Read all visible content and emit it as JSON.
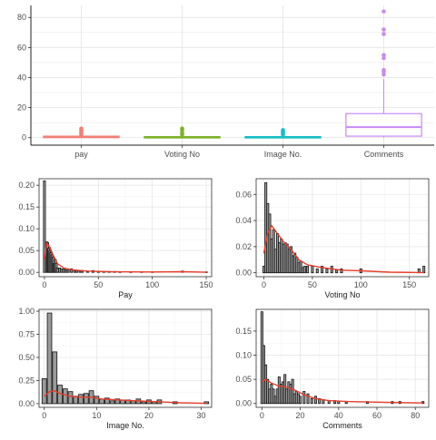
{
  "colors": {
    "pay": "#f07f75",
    "voting": "#80b02a",
    "image": "#17bfc4",
    "comments": "#c98af4",
    "bar_fill": "#9a9a9a",
    "bar_stroke": "#111111",
    "density": "#e63d2b",
    "grid": "#e6e6e6",
    "panel_border": "#333333",
    "tick_text": "#4d4d4d"
  },
  "chart_data": [
    {
      "id": "box",
      "type": "box",
      "categories": [
        "pay",
        "Voting No",
        "Image No.",
        "Comments"
      ],
      "ylim": [
        -5,
        88
      ],
      "yticks": [
        0,
        20,
        40,
        60,
        80
      ],
      "ytick_labels": [
        "0",
        "20",
        "40",
        "60",
        "80"
      ],
      "grid": true,
      "boxes": [
        {
          "q1": 0,
          "median": 0.5,
          "q3": 1,
          "wlow": 0,
          "whigh": 1.5,
          "outliers": [
            2,
            3,
            4,
            5,
            6
          ]
        },
        {
          "q1": 0,
          "median": 0.3,
          "q3": 0.7,
          "wlow": 0,
          "whigh": 1.2,
          "outliers": [
            2,
            3,
            5,
            6
          ]
        },
        {
          "q1": 0,
          "median": 0.3,
          "q3": 0.7,
          "wlow": 0,
          "whigh": 1.2,
          "outliers": [
            2,
            3,
            4,
            5
          ]
        },
        {
          "q1": 1,
          "median": 7,
          "q3": 16,
          "wlow": 0,
          "whigh": 39,
          "outliers": [
            42,
            44,
            45,
            53,
            55,
            69,
            72,
            84
          ]
        }
      ]
    },
    {
      "id": "pay",
      "type": "bar",
      "xlabel": "Pay",
      "xlim": [
        -5,
        155
      ],
      "ylim": [
        -0.01,
        0.215
      ],
      "xticks": [
        0,
        50,
        100,
        150
      ],
      "xtick_labels": [
        "0",
        "50",
        "100",
        "150"
      ],
      "yticks": [
        0,
        0.05,
        0.1,
        0.15,
        0.2
      ],
      "ytick_labels": [
        "0.00",
        "0.05",
        "0.10",
        "0.15",
        "0.20"
      ],
      "x": [
        0,
        2,
        3,
        4,
        5,
        6,
        7,
        8,
        9,
        10,
        11,
        12,
        14,
        16,
        18,
        20,
        22,
        25,
        28,
        30,
        33,
        35,
        40,
        45,
        50,
        55,
        60,
        65,
        70,
        80,
        90,
        100,
        128,
        150
      ],
      "values": [
        0.21,
        0.07,
        0.068,
        0.055,
        0.05,
        0.045,
        0.04,
        0.035,
        0.02,
        0.03,
        0.02,
        0.01,
        0.01,
        0.008,
        0.008,
        0.006,
        0.005,
        0.008,
        0.004,
        0.004,
        0.003,
        0.004,
        0.002,
        0.004,
        0.002,
        0.002,
        0.002,
        0.002,
        0.001,
        0.001,
        0.001,
        0.001,
        0.003,
        0.001
      ],
      "density": [
        [
          0,
          0.03
        ],
        [
          2,
          0.068
        ],
        [
          5,
          0.058
        ],
        [
          8,
          0.04
        ],
        [
          12,
          0.02
        ],
        [
          18,
          0.01
        ],
        [
          25,
          0.006
        ],
        [
          40,
          0.003
        ],
        [
          60,
          0.0015
        ],
        [
          100,
          0.0008
        ],
        [
          128,
          0.0015
        ],
        [
          150,
          0.0003
        ]
      ]
    },
    {
      "id": "voting",
      "type": "bar",
      "xlabel": "Voting No",
      "xlim": [
        -8,
        170
      ],
      "ylim": [
        -0.003,
        0.072
      ],
      "xticks": [
        0,
        50,
        100,
        150
      ],
      "xtick_labels": [
        "0",
        "50",
        "100",
        "150"
      ],
      "yticks": [
        0,
        0.02,
        0.04,
        0.06
      ],
      "ytick_labels": [
        "0.00",
        "0.02",
        "0.04",
        "0.06"
      ],
      "x": [
        0,
        2,
        4,
        6,
        8,
        10,
        12,
        14,
        16,
        18,
        20,
        22,
        24,
        26,
        28,
        30,
        32,
        34,
        36,
        38,
        40,
        42,
        45,
        50,
        55,
        60,
        65,
        70,
        75,
        80,
        100,
        160,
        165
      ],
      "values": [
        0.005,
        0.069,
        0.053,
        0.045,
        0.026,
        0.033,
        0.018,
        0.03,
        0.023,
        0.026,
        0.022,
        0.023,
        0.022,
        0.018,
        0.02,
        0.013,
        0.015,
        0.012,
        0.008,
        0.009,
        0.004,
        0.005,
        0.005,
        0.005,
        0.003,
        0.005,
        0.003,
        0.005,
        0.002,
        0.003,
        0.003,
        0.003,
        0.005
      ],
      "density": [
        [
          0,
          0.015
        ],
        [
          4,
          0.03
        ],
        [
          8,
          0.036
        ],
        [
          14,
          0.03
        ],
        [
          20,
          0.024
        ],
        [
          28,
          0.018
        ],
        [
          36,
          0.01
        ],
        [
          45,
          0.006
        ],
        [
          60,
          0.004
        ],
        [
          80,
          0.002
        ],
        [
          100,
          0.0015
        ],
        [
          130,
          0.0005
        ],
        [
          165,
          0.0002
        ]
      ]
    },
    {
      "id": "image",
      "type": "bar",
      "xlabel": "Image No.",
      "xlim": [
        -1,
        32
      ],
      "ylim": [
        -0.04,
        1.02
      ],
      "xticks": [
        0,
        10,
        20,
        30
      ],
      "xtick_labels": [
        "0",
        "10",
        "20",
        "30"
      ],
      "yticks": [
        0,
        0.25,
        0.5,
        0.75,
        1.0
      ],
      "ytick_labels": [
        "0.00",
        "0.25",
        "0.50",
        "0.75",
        "1.00"
      ],
      "x": [
        0,
        1,
        2,
        3,
        4,
        5,
        6,
        7,
        8,
        9,
        10,
        11,
        12,
        13,
        14,
        15,
        16,
        17,
        18,
        19,
        20,
        21,
        22,
        25,
        31
      ],
      "values": [
        0.27,
        0.98,
        0.56,
        0.2,
        0.16,
        0.13,
        0.08,
        0.1,
        0.11,
        0.14,
        0.08,
        0.05,
        0.06,
        0.03,
        0.05,
        0.04,
        0.04,
        0.03,
        0.05,
        0.02,
        0.04,
        0.02,
        0.04,
        0.02,
        0.02
      ],
      "density": [
        [
          0,
          0.08
        ],
        [
          1,
          0.13
        ],
        [
          2,
          0.14
        ],
        [
          3,
          0.11
        ],
        [
          5,
          0.08
        ],
        [
          7,
          0.07
        ],
        [
          9,
          0.07
        ],
        [
          11,
          0.05
        ],
        [
          14,
          0.04
        ],
        [
          18,
          0.03
        ],
        [
          22,
          0.02
        ],
        [
          26,
          0.01
        ],
        [
          31,
          0.003
        ]
      ]
    },
    {
      "id": "comments",
      "type": "bar",
      "xlabel": "Comments",
      "xlim": [
        -3,
        87
      ],
      "ylim": [
        -0.008,
        0.195
      ],
      "xticks": [
        0,
        20,
        40,
        60,
        80
      ],
      "xtick_labels": [
        "0",
        "20",
        "40",
        "60",
        "80"
      ],
      "yticks": [
        0,
        0.05,
        0.1,
        0.15
      ],
      "ytick_labels": [
        "0.00",
        "0.05",
        "0.10",
        "0.15"
      ],
      "x": [
        0,
        1,
        2,
        3,
        4,
        5,
        6,
        7,
        8,
        9,
        10,
        11,
        12,
        13,
        14,
        15,
        16,
        17,
        18,
        19,
        20,
        22,
        24,
        26,
        28,
        30,
        32,
        35,
        38,
        40,
        44,
        55,
        68,
        72,
        84
      ],
      "values": [
        0.19,
        0.12,
        0.08,
        0.05,
        0.03,
        0.04,
        0.03,
        0.015,
        0.03,
        0.055,
        0.04,
        0.045,
        0.06,
        0.03,
        0.045,
        0.04,
        0.05,
        0.02,
        0.025,
        0.02,
        0.015,
        0.025,
        0.02,
        0.01,
        0.015,
        0.01,
        0.008,
        0.006,
        0.006,
        0.005,
        0.004,
        0.004,
        0.004,
        0.004,
        0.004
      ],
      "density": [
        [
          0,
          0.045
        ],
        [
          2,
          0.05
        ],
        [
          5,
          0.042
        ],
        [
          9,
          0.036
        ],
        [
          13,
          0.034
        ],
        [
          17,
          0.028
        ],
        [
          22,
          0.018
        ],
        [
          28,
          0.01
        ],
        [
          35,
          0.006
        ],
        [
          45,
          0.004
        ],
        [
          55,
          0.003
        ],
        [
          70,
          0.002
        ],
        [
          84,
          0.001
        ]
      ]
    }
  ]
}
